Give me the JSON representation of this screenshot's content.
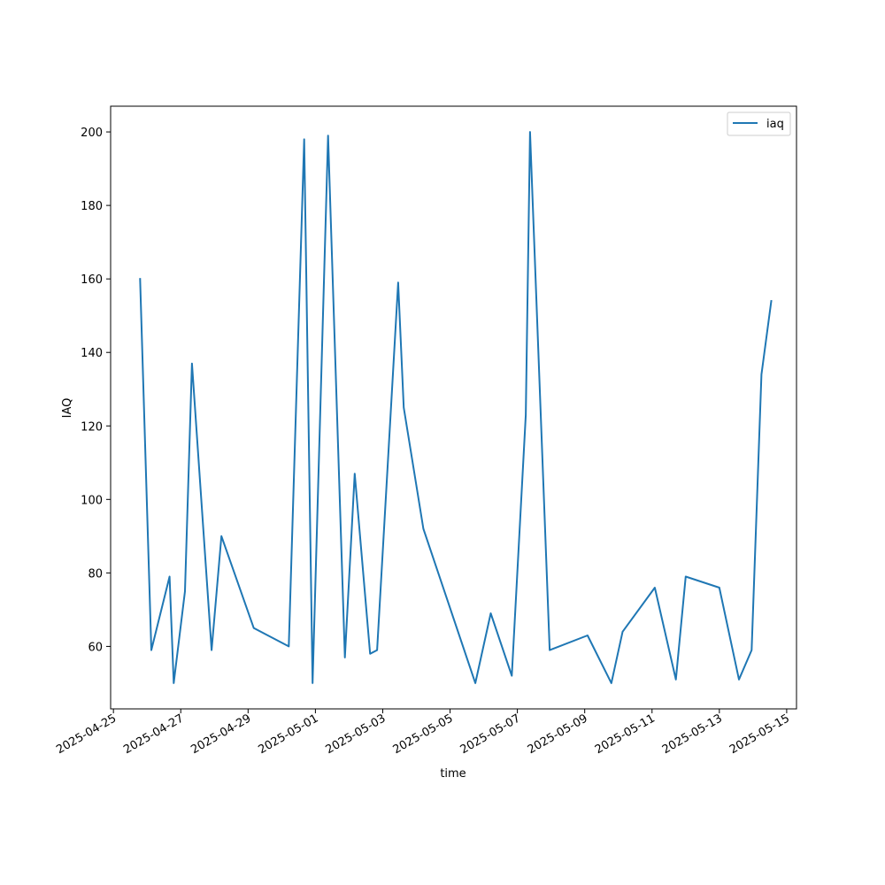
{
  "chart_data": {
    "type": "line",
    "title": "",
    "xlabel": "time",
    "ylabel": "IAQ",
    "legend": {
      "placement": "top-right",
      "entries": [
        "iaq"
      ]
    },
    "grid": false,
    "x_date_range": [
      "2025-04-24T22:00",
      "2025-05-15T07:00"
    ],
    "ylim": [
      43,
      207
    ],
    "x_ticks": [
      "2025-04-25",
      "2025-04-27",
      "2025-04-29",
      "2025-05-01",
      "2025-05-03",
      "2025-05-05",
      "2025-05-07",
      "2025-05-09",
      "2025-05-11",
      "2025-05-13",
      "2025-05-15"
    ],
    "y_ticks": [
      60,
      80,
      100,
      120,
      140,
      160,
      180,
      200
    ],
    "series": [
      {
        "name": "iaq",
        "color": "#1f77b4",
        "points": [
          {
            "x": "2025-04-25T19:00",
            "y": 160
          },
          {
            "x": "2025-04-26T03:00",
            "y": 59
          },
          {
            "x": "2025-04-26T16:00",
            "y": 79
          },
          {
            "x": "2025-04-26T19:00",
            "y": 50
          },
          {
            "x": "2025-04-27T03:00",
            "y": 75
          },
          {
            "x": "2025-04-27T08:00",
            "y": 137
          },
          {
            "x": "2025-04-27T22:00",
            "y": 59
          },
          {
            "x": "2025-04-28T05:00",
            "y": 90
          },
          {
            "x": "2025-04-29T04:00",
            "y": 65
          },
          {
            "x": "2025-04-30T05:00",
            "y": 60
          },
          {
            "x": "2025-04-30T16:00",
            "y": 198
          },
          {
            "x": "2025-04-30T22:00",
            "y": 50
          },
          {
            "x": "2025-05-01T09:00",
            "y": 199
          },
          {
            "x": "2025-05-01T21:00",
            "y": 57
          },
          {
            "x": "2025-05-02T04:00",
            "y": 107
          },
          {
            "x": "2025-05-02T15:00",
            "y": 58
          },
          {
            "x": "2025-05-02T20:00",
            "y": 59
          },
          {
            "x": "2025-05-03T11:00",
            "y": 159
          },
          {
            "x": "2025-05-03T15:00",
            "y": 125
          },
          {
            "x": "2025-05-04T05:00",
            "y": 92
          },
          {
            "x": "2025-05-05T18:00",
            "y": 50
          },
          {
            "x": "2025-05-06T05:00",
            "y": 69
          },
          {
            "x": "2025-05-06T20:00",
            "y": 52
          },
          {
            "x": "2025-05-07T06:00",
            "y": 123
          },
          {
            "x": "2025-05-07T09:00",
            "y": 200
          },
          {
            "x": "2025-05-07T23:00",
            "y": 59
          },
          {
            "x": "2025-05-09T02:00",
            "y": 63
          },
          {
            "x": "2025-05-09T19:00",
            "y": 50
          },
          {
            "x": "2025-05-10T03:00",
            "y": 64
          },
          {
            "x": "2025-05-11T02:00",
            "y": 76
          },
          {
            "x": "2025-05-11T17:00",
            "y": 51
          },
          {
            "x": "2025-05-12T00:00",
            "y": 79
          },
          {
            "x": "2025-05-13T00:00",
            "y": 76
          },
          {
            "x": "2025-05-13T14:00",
            "y": 51
          },
          {
            "x": "2025-05-13T23:00",
            "y": 59
          },
          {
            "x": "2025-05-14T06:00",
            "y": 134
          },
          {
            "x": "2025-05-14T13:00",
            "y": 154
          }
        ]
      }
    ]
  }
}
